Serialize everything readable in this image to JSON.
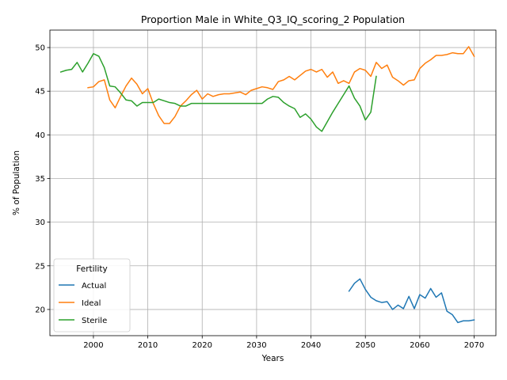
{
  "chart_data": {
    "type": "line",
    "title": "Proportion Male in White_Q3_IQ_scoring_2 Population",
    "xlabel": "Years",
    "ylabel": "% of Population",
    "xlim": [
      1992,
      2074
    ],
    "ylim": [
      17,
      52
    ],
    "xticks": [
      2000,
      2010,
      2020,
      2030,
      2040,
      2050,
      2060,
      2070
    ],
    "yticks": [
      20,
      25,
      30,
      35,
      40,
      45,
      50
    ],
    "grid": true,
    "legend": {
      "title": "Fertility",
      "placement": "lower-left"
    },
    "series": [
      {
        "name": "Actual",
        "color": "#1f77b4",
        "x": [
          2047,
          2048,
          2049,
          2050,
          2051,
          2052,
          2053,
          2054,
          2055,
          2056,
          2057,
          2058,
          2059,
          2060,
          2061,
          2062,
          2063,
          2064,
          2065,
          2066,
          2067,
          2068,
          2069,
          2070
        ],
        "y": [
          22.1,
          23.0,
          23.5,
          22.3,
          21.4,
          21.0,
          20.8,
          20.9,
          20.0,
          20.5,
          20.1,
          21.5,
          20.1,
          21.7,
          21.3,
          22.4,
          21.4,
          21.9,
          19.8,
          19.4,
          18.5,
          18.7,
          18.7,
          18.8
        ]
      },
      {
        "name": "Ideal",
        "color": "#ff7f0e",
        "x": [
          1999,
          2000,
          2001,
          2002,
          2003,
          2004,
          2005,
          2006,
          2007,
          2008,
          2009,
          2010,
          2011,
          2012,
          2013,
          2014,
          2015,
          2016,
          2017,
          2018,
          2019,
          2020,
          2021,
          2022,
          2023,
          2024,
          2025,
          2026,
          2027,
          2028,
          2029,
          2030,
          2031,
          2032,
          2033,
          2034,
          2035,
          2036,
          2037,
          2038,
          2039,
          2040,
          2041,
          2042,
          2043,
          2044,
          2045,
          2046,
          2047,
          2048,
          2049,
          2050,
          2051,
          2052,
          2053,
          2054,
          2055,
          2056,
          2057,
          2058,
          2059,
          2060,
          2061,
          2062,
          2063,
          2064,
          2065,
          2066,
          2067,
          2068,
          2069,
          2070
        ],
        "y": [
          45.4,
          45.5,
          46.1,
          46.3,
          44.0,
          43.1,
          44.4,
          45.6,
          46.5,
          45.8,
          44.7,
          45.3,
          43.6,
          42.2,
          41.3,
          41.3,
          42.1,
          43.3,
          43.9,
          44.6,
          45.1,
          44.1,
          44.7,
          44.4,
          44.6,
          44.7,
          44.7,
          44.8,
          44.9,
          44.6,
          45.1,
          45.3,
          45.5,
          45.4,
          45.2,
          46.1,
          46.3,
          46.7,
          46.3,
          46.8,
          47.3,
          47.5,
          47.2,
          47.5,
          46.6,
          47.2,
          45.9,
          46.2,
          45.9,
          47.2,
          47.6,
          47.4,
          46.7,
          48.3,
          47.6,
          48.0,
          46.6,
          46.2,
          45.7,
          46.2,
          46.3,
          47.6,
          48.2,
          48.6,
          49.1,
          49.1,
          49.2,
          49.4,
          49.3,
          49.3,
          50.1,
          49.0
        ]
      },
      {
        "name": "Sterile",
        "color": "#2ca02c",
        "x": [
          1994,
          1995,
          1996,
          1997,
          1998,
          1999,
          2000,
          2001,
          2002,
          2003,
          2004,
          2005,
          2006,
          2007,
          2008,
          2009,
          2010,
          2011,
          2012,
          2013,
          2014,
          2015,
          2016,
          2017,
          2018,
          2019,
          2020,
          2021,
          2022,
          2023,
          2024,
          2025,
          2026,
          2027,
          2028,
          2029,
          2030,
          2031,
          2032,
          2033,
          2034,
          2035,
          2036,
          2037,
          2038,
          2039,
          2040,
          2041,
          2042,
          2043,
          2044,
          2045,
          2046,
          2047,
          2048,
          2049,
          2050,
          2051,
          2052
        ],
        "y": [
          47.2,
          47.4,
          47.5,
          48.3,
          47.2,
          48.2,
          49.3,
          49.0,
          47.7,
          45.6,
          45.5,
          44.8,
          44.0,
          43.9,
          43.3,
          43.7,
          43.7,
          43.7,
          44.1,
          43.9,
          43.7,
          43.6,
          43.3,
          43.3,
          43.6,
          43.6,
          43.6,
          43.6,
          43.6,
          43.6,
          43.6,
          43.6,
          43.6,
          43.6,
          43.6,
          43.6,
          43.6,
          43.6,
          44.1,
          44.4,
          44.3,
          43.7,
          43.3,
          43.0,
          42.0,
          42.4,
          41.8,
          40.9,
          40.4,
          41.5,
          42.6,
          43.6,
          44.6,
          45.6,
          44.2,
          43.3,
          41.7,
          42.6,
          46.7
        ]
      }
    ]
  }
}
